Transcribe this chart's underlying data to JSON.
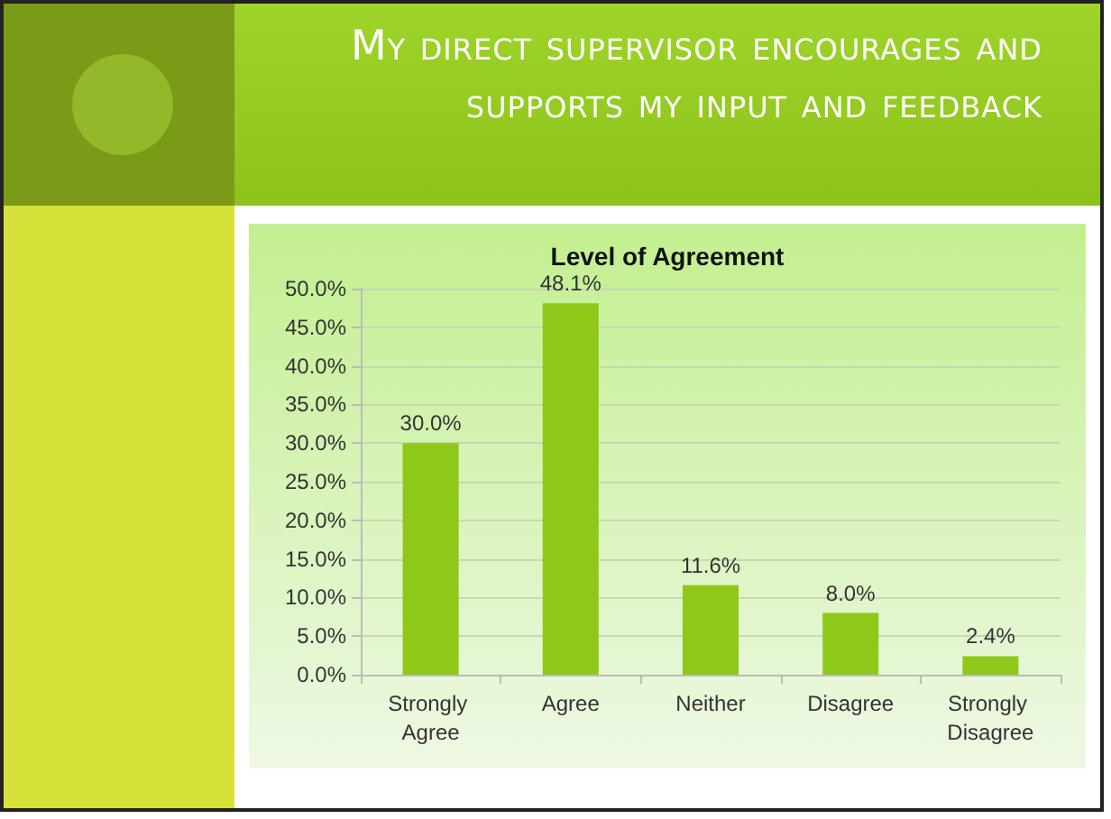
{
  "chart_data": {
    "type": "bar",
    "title": "My direct supervisor encourages and supports my input and feedback",
    "subtitle": "Level of Agreement",
    "categories": [
      "Strongly Agree",
      "Agree",
      "Neither",
      "Disagree",
      "Strongly Disagree"
    ],
    "values": [
      30.0,
      48.1,
      11.6,
      8.0,
      2.4
    ],
    "value_labels": [
      "30.0%",
      "48.1%",
      "11.6%",
      "8.0%",
      "2.4%"
    ],
    "color": "#8ec91a",
    "ylim": [
      0,
      50
    ],
    "yticks": [
      {
        "value": 0,
        "label": "0.0%"
      },
      {
        "value": 5,
        "label": "5.0%"
      },
      {
        "value": 10,
        "label": "10.0%"
      },
      {
        "value": 15,
        "label": "15.0%"
      },
      {
        "value": 20,
        "label": "20.0%"
      },
      {
        "value": 25,
        "label": "25.0%"
      },
      {
        "value": 30,
        "label": "30.0%"
      },
      {
        "value": 35,
        "label": "35.0%"
      },
      {
        "value": 40,
        "label": "40.0%"
      },
      {
        "value": 45,
        "label": "45.0%"
      },
      {
        "value": 50,
        "label": "50.0%"
      }
    ],
    "grid": "y"
  }
}
